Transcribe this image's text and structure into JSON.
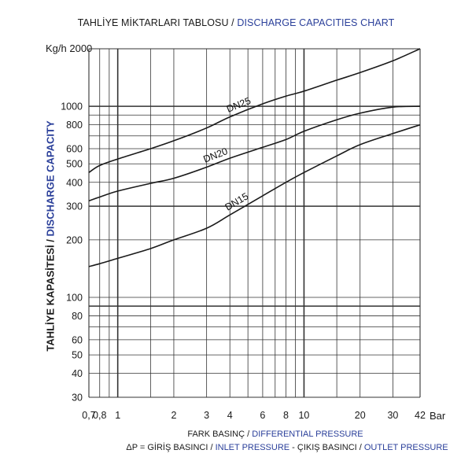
{
  "title": {
    "tr": "TAHLİYE MİKTARLARI TABLOSU / ",
    "en": "DISCHARGE CAPACITIES CHART"
  },
  "y_axis_label": {
    "tr": "TAHLİYE KAPASİTESİ / ",
    "en": "DISCHARGE CAPACITY"
  },
  "x_axis_label": {
    "tr": "FARK BASINÇ / ",
    "en": "DIFFERENTIAL PRESSURE"
  },
  "dp_formula": {
    "prefix": "ΔP =  GİRİŞ BASINCI / ",
    "inlet": "INLET PRESSURE",
    "middle": " - ÇIKIŞ BASINCI / ",
    "outlet": "OUTLET PRESSURE"
  },
  "units": {
    "y_top": "Kg/h 2000",
    "x_right": "Bar"
  },
  "colors": {
    "line": "#1a1a1a",
    "grid": "#333333",
    "blue_text": "#2a3f9a"
  },
  "chart_data": {
    "type": "line",
    "x_scale": "log",
    "y_scale": "log",
    "xlim": [
      0.7,
      42
    ],
    "ylim": [
      30,
      2000
    ],
    "x_ticks": [
      0.7,
      0.8,
      1,
      2,
      3,
      4,
      6,
      8,
      10,
      20,
      30,
      42
    ],
    "x_tick_labels": [
      "0,7",
      "0,8",
      "1",
      "2",
      "3",
      "4",
      "6",
      "8",
      "10",
      "20",
      "30",
      "42"
    ],
    "x_bold_ticks": [
      1,
      10
    ],
    "x_grid": [
      0.7,
      0.8,
      0.9,
      1,
      1.5,
      2,
      3,
      4,
      5,
      6,
      7,
      8,
      9,
      10,
      15,
      20,
      30,
      42
    ],
    "y_ticks": [
      30,
      40,
      50,
      60,
      80,
      100,
      200,
      300,
      400,
      500,
      600,
      800,
      1000
    ],
    "y_tick_labels": [
      "30",
      "40",
      "50",
      "60",
      "80",
      "100",
      "200",
      "300",
      "400",
      "500",
      "600",
      "800",
      "1000"
    ],
    "y_grid": [
      30,
      40,
      50,
      60,
      70,
      80,
      90,
      100,
      200,
      300,
      400,
      500,
      600,
      700,
      800,
      900,
      1000,
      2000
    ],
    "y_bold_grid": [
      90,
      300,
      1000
    ],
    "grid": true,
    "series": [
      {
        "name": "DN25",
        "x": [
          0.7,
          0.8,
          1,
          1.5,
          2,
          3,
          4,
          6,
          8,
          10,
          15,
          20,
          30,
          42
        ],
        "y": [
          450,
          490,
          530,
          600,
          660,
          770,
          880,
          1030,
          1130,
          1200,
          1370,
          1500,
          1730,
          2000
        ]
      },
      {
        "name": "DN20",
        "x": [
          0.7,
          0.8,
          1,
          1.5,
          2,
          3,
          4,
          6,
          8,
          10,
          15,
          20,
          30,
          42
        ],
        "y": [
          320,
          335,
          360,
          395,
          420,
          480,
          535,
          610,
          670,
          740,
          850,
          920,
          990,
          1000
        ]
      },
      {
        "name": "DN15",
        "x": [
          0.7,
          0.8,
          1,
          1.5,
          2,
          3,
          4,
          6,
          8,
          10,
          15,
          20,
          30,
          42
        ],
        "y": [
          145,
          150,
          160,
          180,
          200,
          230,
          270,
          340,
          400,
          450,
          550,
          630,
          720,
          800
        ]
      }
    ]
  }
}
